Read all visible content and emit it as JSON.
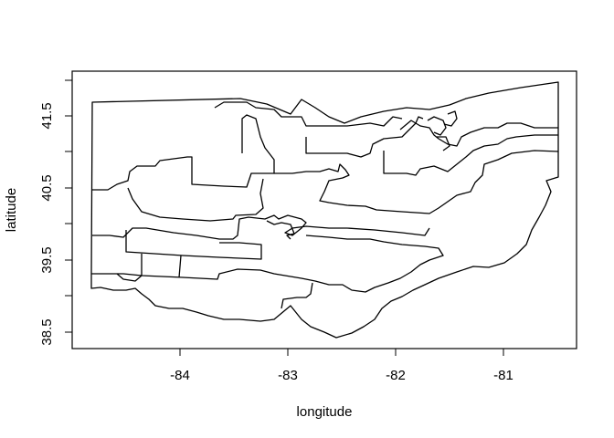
{
  "plot": {
    "xlabel": "longitude",
    "ylabel": "latitude",
    "x_ticks": [
      "-84",
      "-83",
      "-82",
      "-81"
    ],
    "y_ticks": [
      "38.5",
      "39.5",
      "40.5",
      "41.5"
    ],
    "xlim": [
      -84.9,
      -80.4
    ],
    "ylim": [
      38.3,
      42.1
    ]
  },
  "chart_data": {
    "type": "map",
    "xlabel": "longitude",
    "ylabel": "latitude",
    "x_ticks": [
      -84,
      -83,
      -82,
      -81
    ],
    "y_ticks": [
      38.5,
      39.5,
      40.5,
      41.5
    ],
    "grid": false,
    "legend": "none",
    "regions": "congressional district outlines of Ohio"
  }
}
